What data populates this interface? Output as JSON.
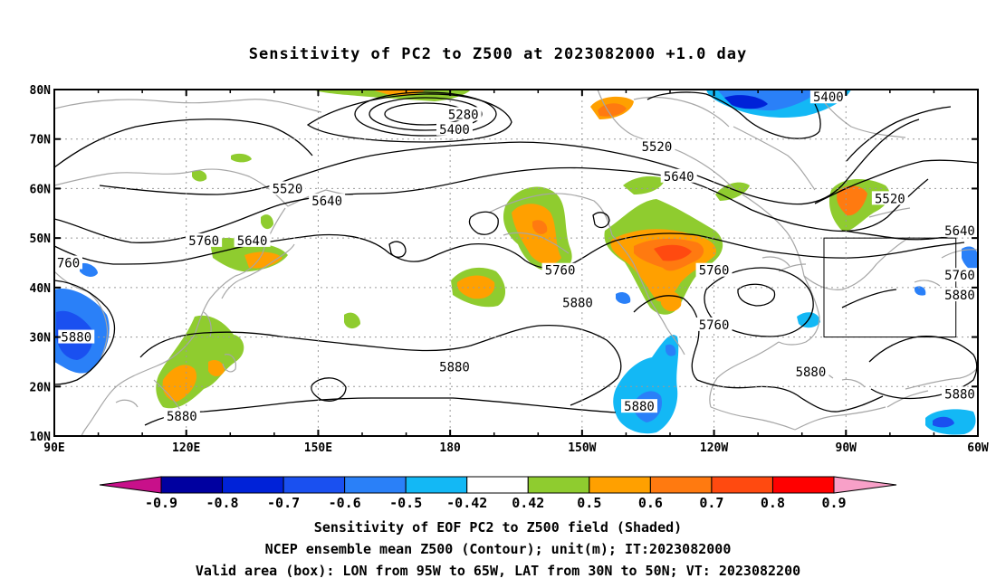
{
  "title": "Sensitivity of PC2 to Z500 at 2023082000 +1.0 day",
  "map": {
    "lon_range": [
      90,
      300
    ],
    "lat_range": [
      10,
      80
    ],
    "lon_ticks": [
      {
        "lon": 90,
        "label": "90E"
      },
      {
        "lon": 120,
        "label": "120E"
      },
      {
        "lon": 150,
        "label": "150E"
      },
      {
        "lon": 180,
        "label": "180"
      },
      {
        "lon": 210,
        "label": "150W"
      },
      {
        "lon": 240,
        "label": "120W"
      },
      {
        "lon": 270,
        "label": "90W"
      },
      {
        "lon": 300,
        "label": "60W"
      }
    ],
    "lat_ticks": [
      {
        "lat": 10,
        "label": "10N"
      },
      {
        "lat": 20,
        "label": "20N"
      },
      {
        "lat": 30,
        "label": "30N"
      },
      {
        "lat": 40,
        "label": "40N"
      },
      {
        "lat": 50,
        "label": "50N"
      },
      {
        "lat": 60,
        "label": "60N"
      },
      {
        "lat": 70,
        "label": "70N"
      },
      {
        "lat": 80,
        "label": "80N"
      }
    ],
    "valid_box": {
      "lon_min": 265,
      "lon_max": 295,
      "lat_min": 30,
      "lat_max": 50
    },
    "contour_labels": [
      {
        "text": "5280",
        "lon": 183,
        "lat": 75
      },
      {
        "text": "5400",
        "lon": 181,
        "lat": 72
      },
      {
        "text": "5400",
        "lon": 266,
        "lat": 78.5
      },
      {
        "text": "5520",
        "lon": 143,
        "lat": 60
      },
      {
        "text": "5520",
        "lon": 227,
        "lat": 68.5
      },
      {
        "text": "5520",
        "lon": 280,
        "lat": 58
      },
      {
        "text": "5640",
        "lon": 152,
        "lat": 57.5
      },
      {
        "text": "5640",
        "lon": 135,
        "lat": 49.5
      },
      {
        "text": "5640",
        "lon": 232,
        "lat": 62.5
      },
      {
        "text": "5640",
        "lon": 301,
        "lat": 51.5
      },
      {
        "text": "5760",
        "lon": 124,
        "lat": 49.5
      },
      {
        "text": "5760",
        "lon": 205,
        "lat": 43.5
      },
      {
        "text": "5760",
        "lon": 240,
        "lat": 43.5
      },
      {
        "text": "5760",
        "lon": 301,
        "lat": 42.5
      },
      {
        "text": "5760",
        "lon": 240,
        "lat": 32.5
      },
      {
        "text": "760",
        "lon": 93,
        "lat": 45
      },
      {
        "text": "5880",
        "lon": 95,
        "lat": 30
      },
      {
        "text": "5880",
        "lon": 209,
        "lat": 37
      },
      {
        "text": "5880",
        "lon": 181,
        "lat": 24
      },
      {
        "text": "5880",
        "lon": 302,
        "lat": 38.5
      },
      {
        "text": "5880",
        "lon": 262,
        "lat": 23
      },
      {
        "text": "5880",
        "lon": 297,
        "lat": 18.5
      },
      {
        "text": "5880",
        "lon": 223,
        "lat": 16
      },
      {
        "text": "5880",
        "lon": 119,
        "lat": 14
      }
    ]
  },
  "colorbar": {
    "labels": [
      "-0.9",
      "-0.8",
      "-0.7",
      "-0.6",
      "-0.5",
      "-0.42",
      "0.42",
      "0.5",
      "0.6",
      "0.7",
      "0.8",
      "0.9"
    ],
    "colors": [
      "#0000a0",
      "#0022d8",
      "#1a50f0",
      "#2a80f8",
      "#13b8f5",
      "#ffffff",
      "#8fcc2f",
      "#ffa000",
      "#ff7a10",
      "#ff4a10",
      "#ff0000"
    ],
    "low_extend_color": "#c8108a",
    "high_extend_color": "#f8a0c8"
  },
  "footer": {
    "line1": "Sensitivity of EOF PC2 to Z500 field (Shaded)",
    "line2": "NCEP ensemble mean Z500 (Contour); unit(m); IT:2023082000",
    "line3": "Valid area (box): LON from 95W to 65W, LAT from 30N to 50N; VT: 2023082200"
  }
}
